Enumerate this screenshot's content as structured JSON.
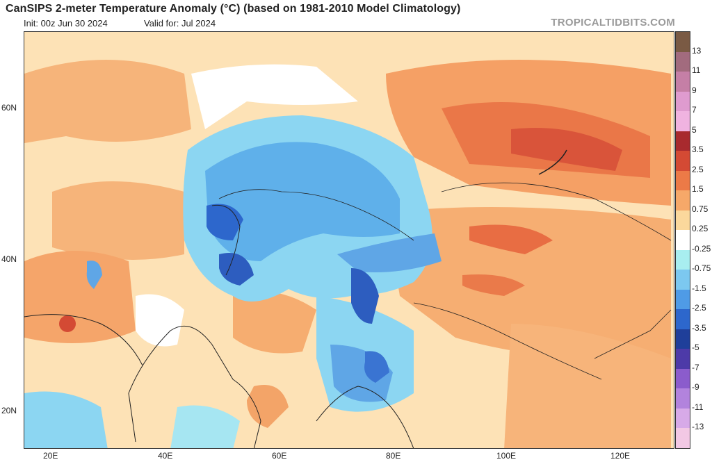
{
  "header": {
    "title": "CanSIPS 2-meter Temperature Anomaly (°C) (based on 1981-2010 Model Climatology)",
    "init": "Init: 00z Jun 30 2024",
    "valid": "Valid for: Jul 2024",
    "brand": "TROPICALTIDBITS.COM"
  },
  "map": {
    "lat_labels": [
      "60N",
      "40N",
      "20N"
    ],
    "lon_labels": [
      "20E",
      "40E",
      "60E",
      "80E",
      "100E",
      "120E"
    ]
  },
  "colorbar": {
    "labels": [
      "13",
      "11",
      "9",
      "7",
      "5",
      "3.5",
      "2.5",
      "1.5",
      "0.75",
      "0.25",
      "-0.25",
      "-0.75",
      "-1.5",
      "-2.5",
      "-3.5",
      "-5",
      "-7",
      "-9",
      "-11",
      "-13"
    ],
    "colors": [
      "#7a5a44",
      "#a26b7e",
      "#c57fa6",
      "#df9bcf",
      "#f0b3e0",
      "#a82a2e",
      "#d44a34",
      "#ec7a47",
      "#f6a869",
      "#fbd89c",
      "#ffffff",
      "#a8eef0",
      "#7cc8f0",
      "#4f9be6",
      "#2d67cc",
      "#1f3f9a",
      "#4d3aa8",
      "#8b5ccc",
      "#b283dd",
      "#d7aae8",
      "#f2c8e4"
    ]
  }
}
